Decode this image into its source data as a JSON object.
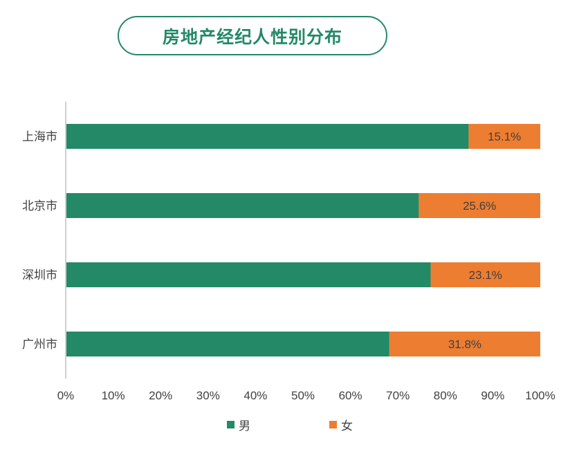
{
  "title": "房地产经纪人性别分布",
  "colors": {
    "male": "#238966",
    "female": "#ED7D31",
    "title": "#238966",
    "axis": "#BFBFBF",
    "text": "#404040"
  },
  "legend": {
    "male_label": "男",
    "female_label": "女"
  },
  "chart_data": {
    "type": "bar",
    "orientation": "horizontal",
    "stacked": "percent",
    "categories": [
      "上海市",
      "北京市",
      "深圳市",
      "广州市"
    ],
    "series": [
      {
        "name": "男",
        "values": [
          84.9,
          74.4,
          76.9,
          68.2
        ]
      },
      {
        "name": "女",
        "values": [
          15.1,
          25.6,
          23.1,
          31.8
        ]
      }
    ],
    "data_labels": [
      "15.1%",
      "25.6%",
      "23.1%",
      "31.8%"
    ],
    "x_ticks": [
      "0%",
      "10%",
      "20%",
      "30%",
      "40%",
      "50%",
      "60%",
      "70%",
      "80%",
      "90%",
      "100%"
    ],
    "xlim": [
      0,
      100
    ],
    "legend_position": "bottom",
    "grid": false
  }
}
